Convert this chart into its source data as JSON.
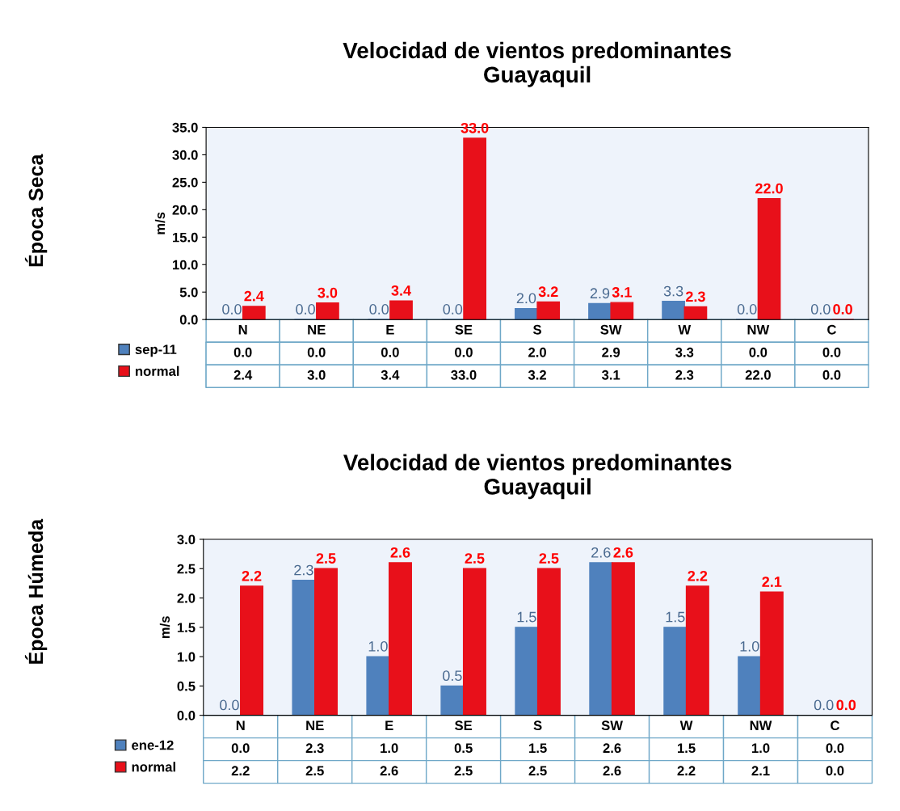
{
  "chart_data": [
    {
      "type": "bar",
      "title": "Velocidad de vientos predominantes\nGuayaquil",
      "ylabel": "m/s",
      "annotations": [
        "Época Seca"
      ],
      "categories": [
        "N",
        "NE",
        "E",
        "SE",
        "S",
        "SW",
        "W",
        "NW",
        "C"
      ],
      "series": [
        {
          "name": "sep-11",
          "color": "#4f81bd",
          "values": [
            0.0,
            0.0,
            0.0,
            0.0,
            2.0,
            2.9,
            3.3,
            0.0,
            0.0
          ],
          "value_labels": [
            "0.0",
            "0.0",
            "0.0",
            "0.0",
            "2.0",
            "2.9",
            "3.3",
            "0.0",
            "0.0"
          ]
        },
        {
          "name": "normal",
          "color": "#e8101a",
          "values": [
            2.4,
            3.0,
            3.4,
            33.0,
            3.2,
            3.1,
            2.3,
            22.0,
            0.0
          ],
          "value_labels": [
            "2.4",
            "3.0",
            "3.4",
            "33.0",
            "3.2",
            "3.1",
            "2.3",
            "22.0",
            "0.0"
          ]
        }
      ],
      "ylim": [
        0,
        35
      ],
      "yticks": [
        {
          "value": 0,
          "label": "0.0"
        },
        {
          "value": 5,
          "label": "5.0"
        },
        {
          "value": 10,
          "label": "10.0"
        },
        {
          "value": 15,
          "label": "15.0"
        },
        {
          "value": 20,
          "label": "20.0"
        },
        {
          "value": 25,
          "label": "25.0"
        },
        {
          "value": 30,
          "label": "30.0"
        },
        {
          "value": 35,
          "label": "35.0"
        }
      ],
      "grid": false,
      "legend": "bottom",
      "tick_labels": "y"
    },
    {
      "type": "bar",
      "title": "Velocidad de vientos predominantes\nGuayaquil",
      "ylabel": "m/s",
      "annotations": [
        "Época Húmeda"
      ],
      "categories": [
        "N",
        "NE",
        "E",
        "SE",
        "S",
        "SW",
        "W",
        "NW",
        "C"
      ],
      "series": [
        {
          "name": "ene-12",
          "color": "#4f81bd",
          "values": [
            0.0,
            2.3,
            1.0,
            0.5,
            1.5,
            2.6,
            1.5,
            1.0,
            0.0
          ],
          "value_labels": [
            "0.0",
            "2.3",
            "1.0",
            "0.5",
            "1.5",
            "2.6",
            "1.5",
            "1.0",
            "0.0"
          ]
        },
        {
          "name": "normal",
          "color": "#e8101a",
          "values": [
            2.2,
            2.5,
            2.6,
            2.5,
            2.5,
            2.6,
            2.2,
            2.1,
            0.0
          ],
          "value_labels": [
            "2.2",
            "2.5",
            "2.6",
            "2.5",
            "2.5",
            "2.6",
            "2.2",
            "2.1",
            "0.0"
          ]
        }
      ],
      "ylim": [
        0,
        3
      ],
      "yticks": [
        {
          "value": 0,
          "label": "0.0"
        },
        {
          "value": 0.5,
          "label": "0.5"
        },
        {
          "value": 1,
          "label": "1.0"
        },
        {
          "value": 1.5,
          "label": "1.5"
        },
        {
          "value": 2,
          "label": "2.0"
        },
        {
          "value": 2.5,
          "label": "2.5"
        },
        {
          "value": 3,
          "label": "3.0"
        }
      ],
      "grid": false,
      "legend": "bottom",
      "tick_labels": "y"
    }
  ]
}
